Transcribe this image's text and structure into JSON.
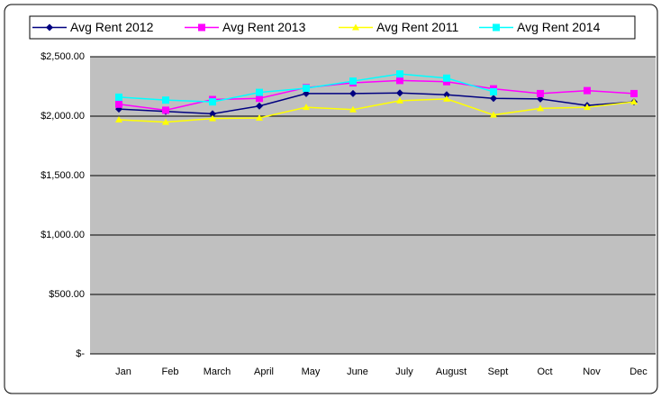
{
  "chart_data": {
    "type": "line",
    "categories": [
      "Jan",
      "Feb",
      "March",
      "April",
      "May",
      "June",
      "July",
      "August",
      "Sept",
      "Oct",
      "Nov",
      "Dec"
    ],
    "series": [
      {
        "name": "Avg Rent 2012",
        "color": "#000080",
        "marker": "diamond",
        "values": [
          2060,
          2040,
          2020,
          2085,
          2190,
          2190,
          2195,
          2180,
          2150,
          2145,
          2090,
          2120
        ]
      },
      {
        "name": "Avg Rent 2013",
        "color": "#ff00ff",
        "marker": "square",
        "values": [
          2100,
          2050,
          2140,
          2150,
          2240,
          2280,
          2300,
          2290,
          2230,
          2190,
          2215,
          2190
        ]
      },
      {
        "name": "Avg Rent 2011",
        "color": "#ffff00",
        "marker": "triangle",
        "values": [
          1970,
          1950,
          1980,
          1985,
          2075,
          2055,
          2130,
          2145,
          2010,
          2065,
          2075,
          2120
        ]
      },
      {
        "name": "Avg Rent 2014",
        "color": "#00ffff",
        "marker": "square",
        "values": [
          2160,
          2135,
          2120,
          2200,
          2235,
          2295,
          2355,
          2320,
          2205,
          null,
          null,
          null
        ]
      }
    ],
    "ylim": [
      0,
      2500
    ],
    "yticks": [
      {
        "value": 0,
        "label": "$-"
      },
      {
        "value": 500,
        "label": "$500.00"
      },
      {
        "value": 1000,
        "label": "$1,000.00"
      },
      {
        "value": 1500,
        "label": "$1,500.00"
      },
      {
        "value": 2000,
        "label": "$2,000.00"
      },
      {
        "value": 2500,
        "label": "$2,500.00"
      }
    ],
    "grid": true,
    "plot_background": "#c0c0c0",
    "legend": "top"
  }
}
